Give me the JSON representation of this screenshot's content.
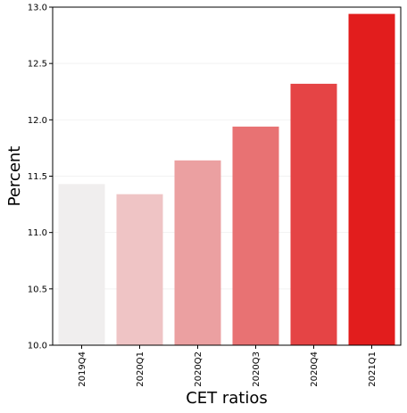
{
  "chart_data": {
    "type": "bar",
    "categories": [
      "2019Q4",
      "2020Q1",
      "2020Q2",
      "2020Q3",
      "2020Q4",
      "2021Q1"
    ],
    "values": [
      11.43,
      11.34,
      11.64,
      11.94,
      12.32,
      12.94
    ],
    "bar_colors": [
      "#f0eeee",
      "#efc4c5",
      "#eba0a1",
      "#e87273",
      "#e54445",
      "#e21d1d"
    ],
    "title": "",
    "xlabel": "CET ratios",
    "ylabel": "Percent",
    "ylim": [
      10.0,
      13.0
    ],
    "y_ticks": [
      "10.0",
      "10.5",
      "11.0",
      "11.5",
      "12.0",
      "12.5",
      "13.0"
    ],
    "grid": "horizontal, faint"
  }
}
